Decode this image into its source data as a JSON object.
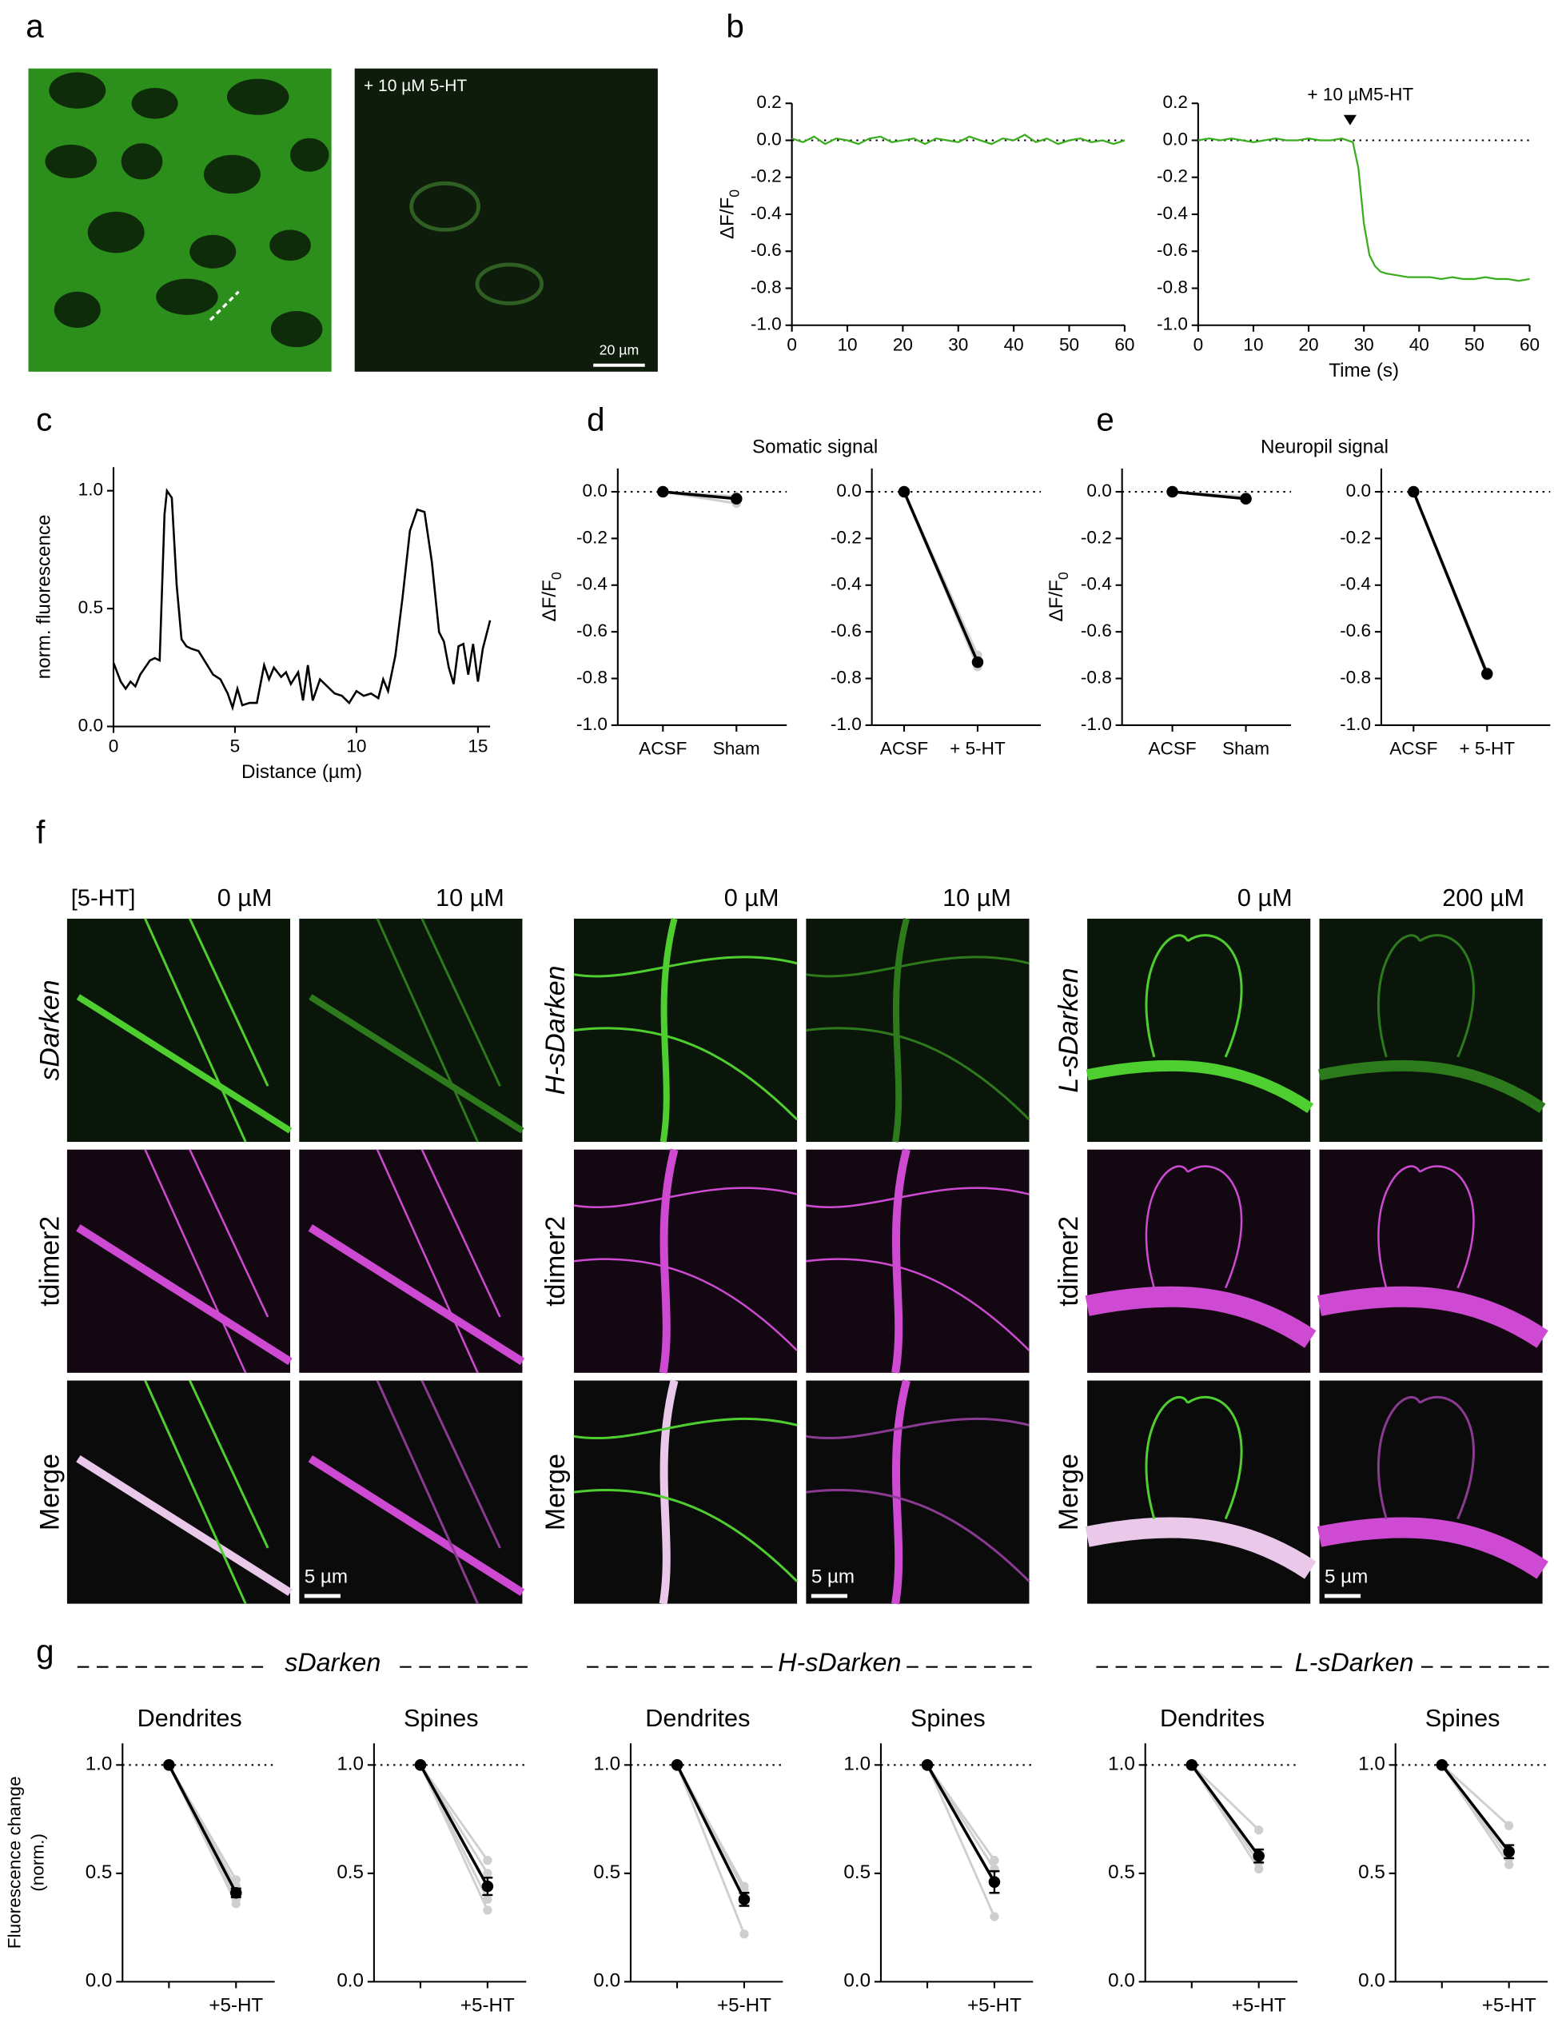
{
  "panel_labels": [
    "a",
    "b",
    "c",
    "d",
    "e",
    "f",
    "g"
  ],
  "panel_a": {
    "annotation": "+ 10 µM 5-HT",
    "scale_bar": "20 µm"
  },
  "panel_f": {
    "header": "[5-HT]",
    "columns": [
      "0 µM",
      "10 µM",
      "0 µM",
      "10 µM",
      "0 µM",
      "200 µM"
    ],
    "groups": [
      {
        "label": "sDarken",
        "rows": [
          "tdimer2",
          "Merge"
        ],
        "scale_bar": "5 µm"
      },
      {
        "label": "H-sDarken",
        "rows": [
          "tdimer2",
          "Merge"
        ],
        "scale_bar": "5 µm"
      },
      {
        "label": "L-sDarken",
        "rows": [
          "tdimer2",
          "Merge"
        ],
        "scale_bar": "5 µm"
      }
    ]
  },
  "g_groups": [
    "sDarken",
    "H-sDarken",
    "L-sDarken"
  ],
  "chart_data": [
    {
      "type": "line",
      "color": "#3aad1e",
      "ylabel": "ΔF/F",
      "ylabel_sub": "0",
      "hline": 0,
      "x": [
        0,
        2,
        4,
        6,
        8,
        10,
        12,
        14,
        16,
        18,
        20,
        22,
        24,
        26,
        28,
        30,
        32,
        34,
        36,
        38,
        40,
        42,
        44,
        46,
        48,
        50,
        52,
        54,
        56,
        58,
        60
      ],
      "values": [
        0.01,
        -0.01,
        0.02,
        -0.02,
        0.01,
        0,
        -0.02,
        0.01,
        0.02,
        -0.01,
        0,
        0.01,
        -0.02,
        0.01,
        0,
        -0.01,
        0.02,
        0,
        -0.02,
        0.01,
        0,
        0.03,
        -0.01,
        0.01,
        -0.02,
        0,
        0.01,
        -0.01,
        0,
        -0.02,
        0
      ],
      "xlim": [
        0,
        60
      ],
      "xticks": [
        0,
        10,
        20,
        30,
        40,
        50,
        60
      ],
      "ylim": [
        -1,
        0.2
      ],
      "yticks": [
        0.2,
        {
          "value": 0,
          "label": "0.0"
        },
        -0.2,
        -0.4,
        -0.6,
        -0.8,
        {
          "value": -1,
          "label": "-1.0"
        }
      ]
    },
    {
      "type": "line",
      "color": "#3aad1e",
      "xlabel": "Time (s)",
      "hline": 0,
      "annotation": "+ 10 µM5-HT",
      "annotation_x": 27.5,
      "x": [
        0,
        2,
        4,
        6,
        8,
        10,
        12,
        14,
        16,
        18,
        20,
        22,
        24,
        26,
        27,
        28,
        29,
        30,
        31,
        32,
        33,
        34,
        36,
        38,
        40,
        42,
        44,
        46,
        48,
        50,
        52,
        54,
        56,
        58,
        60
      ],
      "values": [
        0,
        0.01,
        0,
        0.01,
        0,
        -0.01,
        0,
        0.01,
        0,
        0,
        0.01,
        0,
        0,
        0.01,
        0,
        -0.01,
        -0.15,
        -0.45,
        -0.62,
        -0.68,
        -0.71,
        -0.72,
        -0.73,
        -0.74,
        -0.74,
        -0.74,
        -0.75,
        -0.74,
        -0.75,
        -0.75,
        -0.74,
        -0.75,
        -0.75,
        -0.76,
        -0.75
      ],
      "xlim": [
        0,
        60
      ],
      "xticks": [
        0,
        10,
        20,
        30,
        40,
        50,
        60
      ],
      "ylim": [
        -1,
        0.2
      ],
      "yticks": [
        0.2,
        {
          "value": 0,
          "label": "0.0"
        },
        -0.2,
        -0.4,
        -0.6,
        -0.8,
        {
          "value": -1,
          "label": "-1.0"
        }
      ]
    },
    {
      "type": "line",
      "color": "#000000",
      "ylabel": "norm. fluorescence",
      "xlabel": "Distance (µm)",
      "x": [
        0,
        0.3,
        0.5,
        0.7,
        0.9,
        1.1,
        1.3,
        1.5,
        1.7,
        1.9,
        2.1,
        2.2,
        2.4,
        2.6,
        2.8,
        3.0,
        3.2,
        3.5,
        3.8,
        4.1,
        4.4,
        4.7,
        4.9,
        5.1,
        5.3,
        5.6,
        5.9,
        6.2,
        6.4,
        6.6,
        6.9,
        7.1,
        7.3,
        7.6,
        7.8,
        8.0,
        8.2,
        8.5,
        8.8,
        9.1,
        9.4,
        9.7,
        10.0,
        10.3,
        10.6,
        10.9,
        11.1,
        11.3,
        11.6,
        11.9,
        12.2,
        12.5,
        12.8,
        13.1,
        13.4,
        13.6,
        13.8,
        14.0,
        14.2,
        14.4,
        14.6,
        14.8,
        15.0,
        15.2,
        15.5
      ],
      "values": [
        0.27,
        0.19,
        0.16,
        0.19,
        0.17,
        0.22,
        0.25,
        0.28,
        0.29,
        0.28,
        0.9,
        1.0,
        0.97,
        0.6,
        0.37,
        0.34,
        0.33,
        0.32,
        0.27,
        0.22,
        0.2,
        0.14,
        0.08,
        0.16,
        0.09,
        0.1,
        0.1,
        0.26,
        0.2,
        0.25,
        0.21,
        0.23,
        0.18,
        0.23,
        0.11,
        0.26,
        0.11,
        0.2,
        0.17,
        0.14,
        0.13,
        0.1,
        0.15,
        0.13,
        0.14,
        0.12,
        0.2,
        0.15,
        0.3,
        0.55,
        0.83,
        0.92,
        0.91,
        0.7,
        0.4,
        0.36,
        0.25,
        0.18,
        0.34,
        0.35,
        0.22,
        0.35,
        0.19,
        0.33,
        0.45
      ],
      "xlim": [
        0,
        15.5
      ],
      "xticks": [
        0,
        5,
        10,
        15
      ],
      "ylim": [
        0,
        1.1
      ],
      "yticks": [
        {
          "value": 0,
          "label": "0.0"
        },
        0.5,
        {
          "value": 1,
          "label": "1.0"
        }
      ]
    },
    {
      "type": "paired",
      "title": "Somatic signal",
      "ylabel": "ΔF/F",
      "ylabel_sub": "0",
      "hline": 0,
      "categories": [
        "ACSF",
        "Sham"
      ],
      "values": [
        0,
        -0.03
      ],
      "individual": [
        [
          0,
          -0.05
        ],
        [
          0,
          -0.02
        ]
      ],
      "ylim": [
        -1,
        0.1
      ],
      "yticks": [
        {
          "value": 0,
          "label": "0.0"
        },
        -0.2,
        -0.4,
        -0.6,
        -0.8,
        {
          "value": -1,
          "label": "-1.0"
        }
      ]
    },
    {
      "type": "paired",
      "hline": 0,
      "categories": [
        "ACSF",
        "+ 5-HT"
      ],
      "values": [
        0,
        -0.73
      ],
      "individual": [
        [
          0,
          -0.75
        ],
        [
          0,
          -0.7
        ]
      ],
      "ylim": [
        -1,
        0.1
      ],
      "yticks": [
        {
          "value": 0,
          "label": "0.0"
        },
        -0.2,
        -0.4,
        -0.6,
        -0.8,
        {
          "value": -1,
          "label": "-1.0"
        }
      ]
    },
    {
      "type": "paired",
      "title": "Neuropil signal",
      "ylabel": "ΔF/F",
      "ylabel_sub": "0",
      "hline": 0,
      "categories": [
        "ACSF",
        "Sham"
      ],
      "values": [
        0,
        -0.03
      ],
      "individual": [
        [
          0,
          -0.02
        ],
        [
          0,
          -0.03
        ]
      ],
      "ylim": [
        -1,
        0.1
      ],
      "yticks": [
        {
          "value": 0,
          "label": "0.0"
        },
        -0.2,
        -0.4,
        -0.6,
        -0.8,
        {
          "value": -1,
          "label": "-1.0"
        }
      ]
    },
    {
      "type": "paired",
      "hline": 0,
      "categories": [
        "ACSF",
        "+ 5-HT"
      ],
      "values": [
        0,
        -0.78
      ],
      "individual": [
        [
          0,
          -0.79
        ],
        [
          0,
          -0.77
        ]
      ],
      "ylim": [
        -1,
        0.1
      ],
      "yticks": [
        {
          "value": 0,
          "label": "0.0"
        },
        -0.2,
        -0.4,
        -0.6,
        -0.8,
        {
          "value": -1,
          "label": "-1.0"
        }
      ]
    },
    {
      "type": "paired",
      "title": "Dendrites",
      "ylabel": [
        "Fluorescence change",
        "(norm.)"
      ],
      "hline": 1,
      "categories": [
        null,
        "+5-HT"
      ],
      "values": [
        1,
        0.41
      ],
      "error": [
        null,
        0.02
      ],
      "individual": [
        [
          1,
          0.36
        ],
        [
          1,
          0.38
        ],
        [
          1,
          0.44
        ],
        [
          1,
          0.47
        ]
      ],
      "ylim": [
        0,
        1.1
      ],
      "yticks": [
        {
          "value": 0,
          "label": "0.0"
        },
        0.5,
        {
          "value": 1,
          "label": "1.0"
        }
      ]
    },
    {
      "type": "paired",
      "title": "Spines",
      "hline": 1,
      "categories": [
        null,
        "+5-HT"
      ],
      "values": [
        1,
        0.44
      ],
      "error": [
        null,
        0.04
      ],
      "individual": [
        [
          1,
          0.33
        ],
        [
          1,
          0.38
        ],
        [
          1,
          0.5
        ],
        [
          1,
          0.56
        ]
      ],
      "ylim": [
        0,
        1.1
      ],
      "yticks": [
        {
          "value": 0,
          "label": "0.0"
        },
        0.5,
        {
          "value": 1,
          "label": "1.0"
        }
      ]
    },
    {
      "type": "paired",
      "title": "Dendrites",
      "hline": 1,
      "categories": [
        null,
        "+5-HT"
      ],
      "values": [
        1,
        0.38
      ],
      "error": [
        null,
        0.03
      ],
      "individual": [
        [
          1,
          0.22
        ],
        [
          1,
          0.42
        ],
        [
          1,
          0.44
        ]
      ],
      "ylim": [
        0,
        1.1
      ],
      "yticks": [
        {
          "value": 0,
          "label": "0.0"
        },
        0.5,
        {
          "value": 1,
          "label": "1.0"
        }
      ]
    },
    {
      "type": "paired",
      "title": "Spines",
      "hline": 1,
      "categories": [
        null,
        "+5-HT"
      ],
      "values": [
        1,
        0.46
      ],
      "error": [
        null,
        0.05
      ],
      "individual": [
        [
          1,
          0.3
        ],
        [
          1,
          0.52
        ],
        [
          1,
          0.56
        ]
      ],
      "ylim": [
        0,
        1.1
      ],
      "yticks": [
        {
          "value": 0,
          "label": "0.0"
        },
        0.5,
        {
          "value": 1,
          "label": "1.0"
        }
      ]
    },
    {
      "type": "paired",
      "title": "Dendrites",
      "hline": 1,
      "categories": [
        null,
        "+5-HT"
      ],
      "values": [
        1,
        0.58
      ],
      "error": [
        null,
        0.03
      ],
      "individual": [
        [
          1,
          0.52
        ],
        [
          1,
          0.55
        ],
        [
          1,
          0.7
        ]
      ],
      "ylim": [
        0,
        1.1
      ],
      "yticks": [
        {
          "value": 0,
          "label": "0.0"
        },
        0.5,
        {
          "value": 1,
          "label": "1.0"
        }
      ]
    },
    {
      "type": "paired",
      "title": "Spines",
      "hline": 1,
      "categories": [
        null,
        "+5-HT"
      ],
      "values": [
        1,
        0.6
      ],
      "error": [
        null,
        0.03
      ],
      "individual": [
        [
          1,
          0.54
        ],
        [
          1,
          0.57
        ],
        [
          1,
          0.72
        ]
      ],
      "ylim": [
        0,
        1.1
      ],
      "yticks": [
        {
          "value": 0,
          "label": "0.0"
        },
        0.5,
        {
          "value": 1,
          "label": "1.0"
        }
      ]
    }
  ]
}
